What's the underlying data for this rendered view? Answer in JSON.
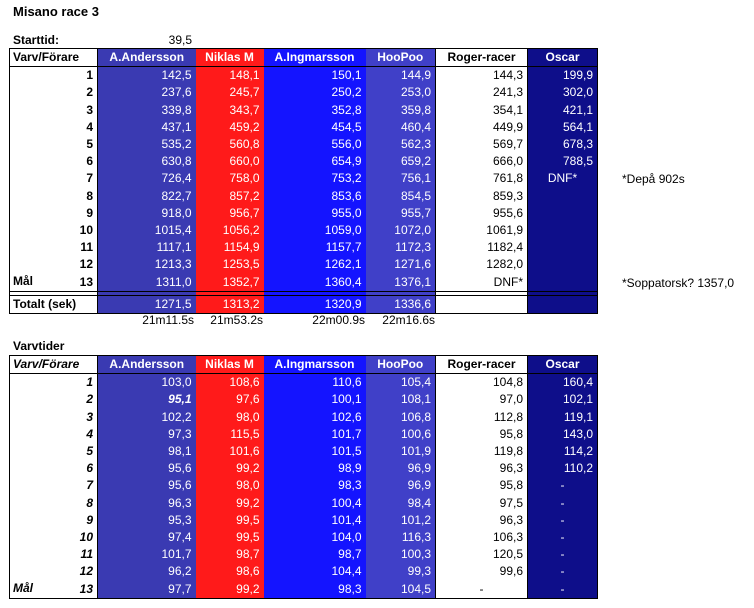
{
  "title": "Misano race 3",
  "starttid": {
    "label": "Starttid:",
    "value": "39,5"
  },
  "header_label": "Varv/Förare",
  "drivers": [
    "A.Andersson",
    "Niklas M",
    "A.Ingmarsson",
    "HooPoo",
    "Roger-racer",
    "Oscar"
  ],
  "colors": {
    "andersson": "#3a3ab2",
    "niklas": "#ff1a1a",
    "ingmarsson": "#1414ff",
    "hoopoo": "#4040c8",
    "roger": "#ffffff",
    "oscar": "#0e0e8a"
  },
  "cumulative": {
    "rows": [
      {
        "lap": "1",
        "values": [
          "142,5",
          "148,1",
          "150,1",
          "144,9",
          "144,3",
          "199,9"
        ]
      },
      {
        "lap": "2",
        "values": [
          "237,6",
          "245,7",
          "250,2",
          "253,0",
          "241,3",
          "302,0"
        ]
      },
      {
        "lap": "3",
        "values": [
          "339,8",
          "343,7",
          "352,8",
          "359,8",
          "354,1",
          "421,1"
        ]
      },
      {
        "lap": "4",
        "values": [
          "437,1",
          "459,2",
          "454,5",
          "460,4",
          "449,9",
          "564,1"
        ]
      },
      {
        "lap": "5",
        "values": [
          "535,2",
          "560,8",
          "556,0",
          "562,3",
          "569,7",
          "678,3"
        ]
      },
      {
        "lap": "6",
        "values": [
          "630,8",
          "660,0",
          "654,9",
          "659,2",
          "666,0",
          "788,5"
        ]
      },
      {
        "lap": "7",
        "values": [
          "726,4",
          "758,0",
          "753,2",
          "756,1",
          "761,8",
          "DNF*"
        ]
      },
      {
        "lap": "8",
        "values": [
          "822,7",
          "857,2",
          "853,6",
          "854,5",
          "859,3",
          ""
        ]
      },
      {
        "lap": "9",
        "values": [
          "918,0",
          "956,7",
          "955,0",
          "955,7",
          "955,6",
          ""
        ]
      },
      {
        "lap": "10",
        "values": [
          "1015,4",
          "1056,2",
          "1059,0",
          "1072,0",
          "1061,9",
          ""
        ]
      },
      {
        "lap": "11",
        "values": [
          "1117,1",
          "1154,9",
          "1157,7",
          "1172,3",
          "1182,4",
          ""
        ]
      },
      {
        "lap": "12",
        "values": [
          "1213,3",
          "1253,5",
          "1262,1",
          "1271,6",
          "1282,0",
          ""
        ]
      },
      {
        "lap": "13",
        "prefix": "Mål",
        "values": [
          "1311,0",
          "1352,7",
          "1360,4",
          "1376,1",
          "DNF*",
          ""
        ]
      }
    ],
    "total_label": "Totalt (sek)",
    "totals": [
      "1271,5",
      "1313,2",
      "1320,9",
      "1336,6",
      "",
      ""
    ],
    "formatted": [
      "21m11.5s",
      "21m53.2s",
      "22m00.9s",
      "22m16.6s"
    ],
    "notes": [
      "*Depå 902s",
      "*Soppatorsk? 1357,0"
    ]
  },
  "laptimes": {
    "label": "Varvtider",
    "rows": [
      {
        "lap": "1",
        "values": [
          "103,0",
          "108,6",
          "110,6",
          "105,4",
          "104,8",
          "160,4"
        ]
      },
      {
        "lap": "2",
        "values": [
          "95,1",
          "97,6",
          "100,1",
          "108,1",
          "97,0",
          "102,1"
        ]
      },
      {
        "lap": "3",
        "values": [
          "102,2",
          "98,0",
          "102,6",
          "106,8",
          "112,8",
          "119,1"
        ]
      },
      {
        "lap": "4",
        "values": [
          "97,3",
          "115,5",
          "101,7",
          "100,6",
          "95,8",
          "143,0"
        ]
      },
      {
        "lap": "5",
        "values": [
          "98,1",
          "101,6",
          "101,5",
          "101,9",
          "119,8",
          "114,2"
        ]
      },
      {
        "lap": "6",
        "values": [
          "95,6",
          "99,2",
          "98,9",
          "96,9",
          "96,3",
          "110,2"
        ]
      },
      {
        "lap": "7",
        "values": [
          "95,6",
          "98,0",
          "98,3",
          "96,9",
          "95,8",
          "-"
        ]
      },
      {
        "lap": "8",
        "values": [
          "96,3",
          "99,2",
          "100,4",
          "98,4",
          "97,5",
          "-"
        ]
      },
      {
        "lap": "9",
        "values": [
          "95,3",
          "99,5",
          "101,4",
          "101,2",
          "96,3",
          "-"
        ]
      },
      {
        "lap": "10",
        "values": [
          "97,4",
          "99,5",
          "104,0",
          "116,3",
          "106,3",
          "-"
        ]
      },
      {
        "lap": "11",
        "values": [
          "101,7",
          "98,7",
          "98,7",
          "100,3",
          "120,5",
          "-"
        ]
      },
      {
        "lap": "12",
        "values": [
          "96,2",
          "98,6",
          "104,4",
          "99,3",
          "99,6",
          "-"
        ]
      },
      {
        "lap": "13",
        "prefix": "Mål",
        "values": [
          "97,7",
          "99,2",
          "98,3",
          "104,5",
          "-",
          "-"
        ]
      }
    ]
  }
}
